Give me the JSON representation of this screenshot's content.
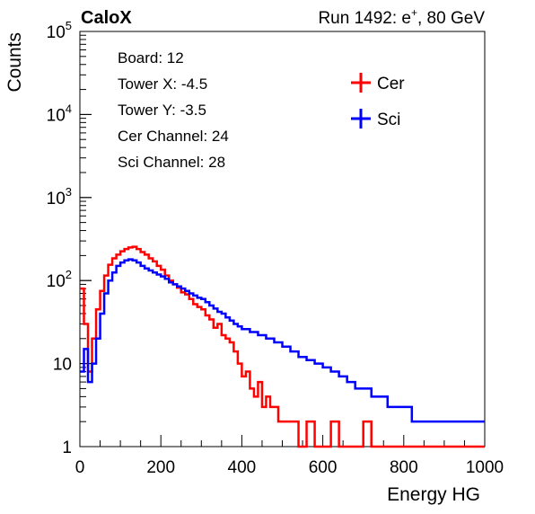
{
  "header": {
    "experiment": "CaloX",
    "run_prefix": "Run 1492: e",
    "run_superscript": "+",
    "run_suffix": ", 80 GeV"
  },
  "info_box": {
    "lines": [
      "Board: 12",
      "Tower X: -4.5",
      "Tower Y: -3.5",
      "Cer Channel: 24",
      "Sci Channel: 28"
    ]
  },
  "chart_data": {
    "type": "line",
    "style": "step-histogram",
    "xlabel": "Energy HG",
    "ylabel": "Counts",
    "xlim": [
      0,
      1000
    ],
    "ylim": [
      1,
      100000
    ],
    "yscale": "log",
    "grid": false,
    "legend_position": "top-right",
    "x_ticks": [
      0,
      200,
      400,
      600,
      800,
      1000
    ],
    "x_tick_labels": [
      "0",
      "200",
      "400",
      "600",
      "800",
      "1000"
    ],
    "y_tick_labels": [
      {
        "value": 1,
        "base": "1",
        "exp": ""
      },
      {
        "value": 10,
        "base": "10",
        "exp": ""
      },
      {
        "value": 100,
        "base": "10",
        "exp": "2"
      },
      {
        "value": 1000,
        "base": "10",
        "exp": "3"
      },
      {
        "value": 10000,
        "base": "10",
        "exp": "4"
      },
      {
        "value": 100000,
        "base": "10",
        "exp": "5"
      }
    ],
    "series": [
      {
        "name": "Cer",
        "color": "#ff0000",
        "x": [
          0,
          10,
          20,
          30,
          40,
          50,
          60,
          70,
          80,
          90,
          100,
          110,
          120,
          130,
          140,
          150,
          160,
          170,
          180,
          190,
          200,
          210,
          220,
          230,
          240,
          250,
          260,
          270,
          280,
          290,
          300,
          310,
          320,
          330,
          340,
          350,
          360,
          370,
          380,
          390,
          400,
          410,
          420,
          430,
          440,
          450,
          460,
          470,
          480,
          490,
          500,
          520,
          540,
          560,
          580,
          600,
          620,
          640,
          660,
          680,
          700,
          720,
          740,
          760,
          780,
          800,
          820,
          840,
          860,
          880,
          900,
          920,
          940,
          960,
          980
        ],
        "values": [
          80,
          30,
          8,
          20,
          45,
          75,
          115,
          155,
          185,
          205,
          225,
          240,
          250,
          255,
          240,
          220,
          205,
          185,
          170,
          150,
          135,
          115,
          100,
          90,
          82,
          72,
          68,
          60,
          52,
          48,
          45,
          38,
          34,
          27,
          30,
          22,
          20,
          18,
          14,
          10,
          7,
          8,
          5,
          4,
          6,
          3,
          4,
          3,
          3,
          2,
          2,
          2,
          1,
          2,
          1,
          1,
          2,
          1,
          1,
          1,
          2,
          1,
          1,
          1,
          1,
          1,
          1,
          1,
          1,
          1,
          1,
          1,
          1,
          1,
          1
        ]
      },
      {
        "name": "Sci",
        "color": "#0000ff",
        "x": [
          0,
          10,
          20,
          30,
          40,
          50,
          60,
          70,
          80,
          90,
          100,
          110,
          120,
          130,
          140,
          150,
          160,
          170,
          180,
          190,
          200,
          210,
          220,
          230,
          240,
          250,
          260,
          270,
          280,
          290,
          300,
          310,
          320,
          330,
          340,
          350,
          360,
          370,
          380,
          390,
          400,
          420,
          440,
          460,
          480,
          500,
          520,
          540,
          560,
          580,
          600,
          620,
          640,
          660,
          680,
          700,
          720,
          740,
          760,
          780,
          800,
          820,
          840,
          860,
          880,
          900,
          920,
          940,
          960,
          980
        ],
        "values": [
          8,
          15,
          6,
          10,
          20,
          40,
          70,
          100,
          125,
          150,
          165,
          175,
          180,
          175,
          165,
          150,
          140,
          132,
          125,
          118,
          112,
          105,
          95,
          90,
          85,
          80,
          75,
          70,
          66,
          62,
          60,
          55,
          50,
          46,
          42,
          40,
          36,
          33,
          30,
          28,
          26,
          24,
          22,
          20,
          18,
          16,
          14,
          12,
          11,
          10,
          9,
          8,
          7,
          6,
          5,
          5,
          4,
          4,
          3,
          3,
          3,
          2,
          2,
          2,
          2,
          2,
          2,
          2,
          2,
          2
        ]
      }
    ]
  }
}
